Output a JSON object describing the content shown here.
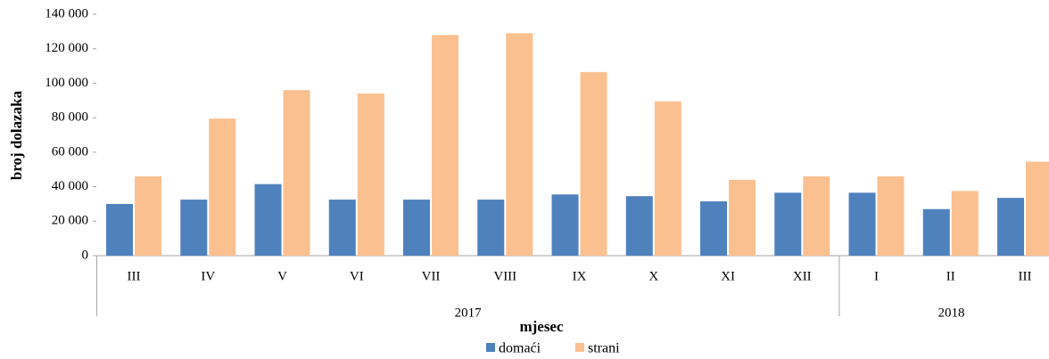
{
  "chart_data": {
    "type": "bar",
    "x_label": "mjesec",
    "y_label": "broj dolazaka",
    "groups": [
      {
        "name": "2017",
        "categories": [
          "III",
          "IV",
          "V",
          "VI",
          "VII",
          "VIII",
          "IX",
          "X",
          "XI",
          "XII"
        ]
      },
      {
        "name": "2018",
        "categories": [
          "I",
          "II",
          "III"
        ]
      }
    ],
    "series": [
      {
        "name": "domaći",
        "color": "#4f81bd",
        "values": [
          30000,
          32500,
          41500,
          32500,
          32500,
          32500,
          35500,
          34500,
          31500,
          36500,
          36500,
          27000,
          33500
        ]
      },
      {
        "name": "strani",
        "color": "#fac090",
        "values": [
          46000,
          79500,
          96000,
          94000,
          128000,
          129000,
          106500,
          89500,
          44000,
          46000,
          46000,
          37500,
          54500
        ]
      }
    ],
    "ylim": [
      0,
      140000
    ],
    "yticks": [
      0,
      {
        "value": 20000,
        "label": "20 000"
      },
      {
        "value": 40000,
        "label": "40 000"
      },
      {
        "value": 60000,
        "label": "60 000"
      },
      {
        "value": 80000,
        "label": "80 000"
      },
      {
        "value": 100000,
        "label": "100 000"
      },
      {
        "value": 120000,
        "label": "120 000"
      },
      {
        "value": 140000,
        "label": "140 000"
      }
    ],
    "legend": "bottom"
  }
}
